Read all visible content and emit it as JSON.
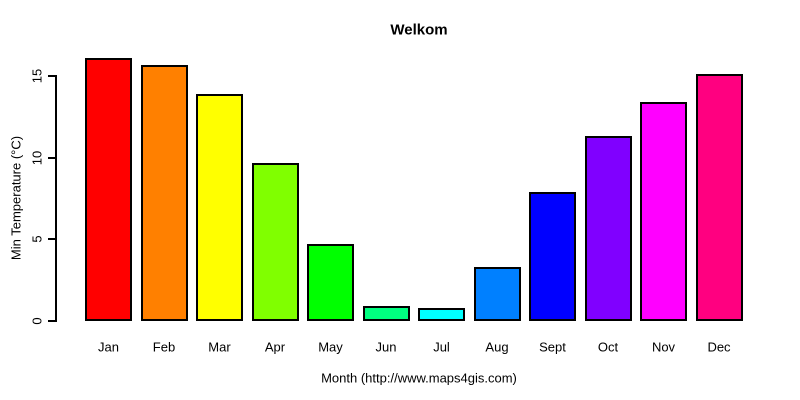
{
  "chart_data": {
    "type": "bar",
    "title": "Welkom",
    "xlabel": "Month (http://www.maps4gis.com)",
    "ylabel": "Min Temperature (°C)",
    "categories": [
      "Jan",
      "Feb",
      "Mar",
      "Apr",
      "May",
      "Jun",
      "Jul",
      "Aug",
      "Sept",
      "Oct",
      "Nov",
      "Dec"
    ],
    "values": [
      16.1,
      15.7,
      13.9,
      9.7,
      4.7,
      0.9,
      0.8,
      3.3,
      7.9,
      11.3,
      13.4,
      15.1
    ],
    "bar_colors": [
      "#FF0000",
      "#FF8000",
      "#FFFF00",
      "#80FF00",
      "#00FF00",
      "#00FF80",
      "#00FFFF",
      "#0080FF",
      "#0000FF",
      "#8000FF",
      "#FF00FF",
      "#FF0080"
    ],
    "bar_border_color": "#000000",
    "ylim": [
      0,
      15
    ],
    "y_ticks": [
      0,
      5,
      10,
      15
    ],
    "grid": false,
    "legend": "none",
    "background": "#FFFFFF",
    "text_color": "#000000"
  }
}
